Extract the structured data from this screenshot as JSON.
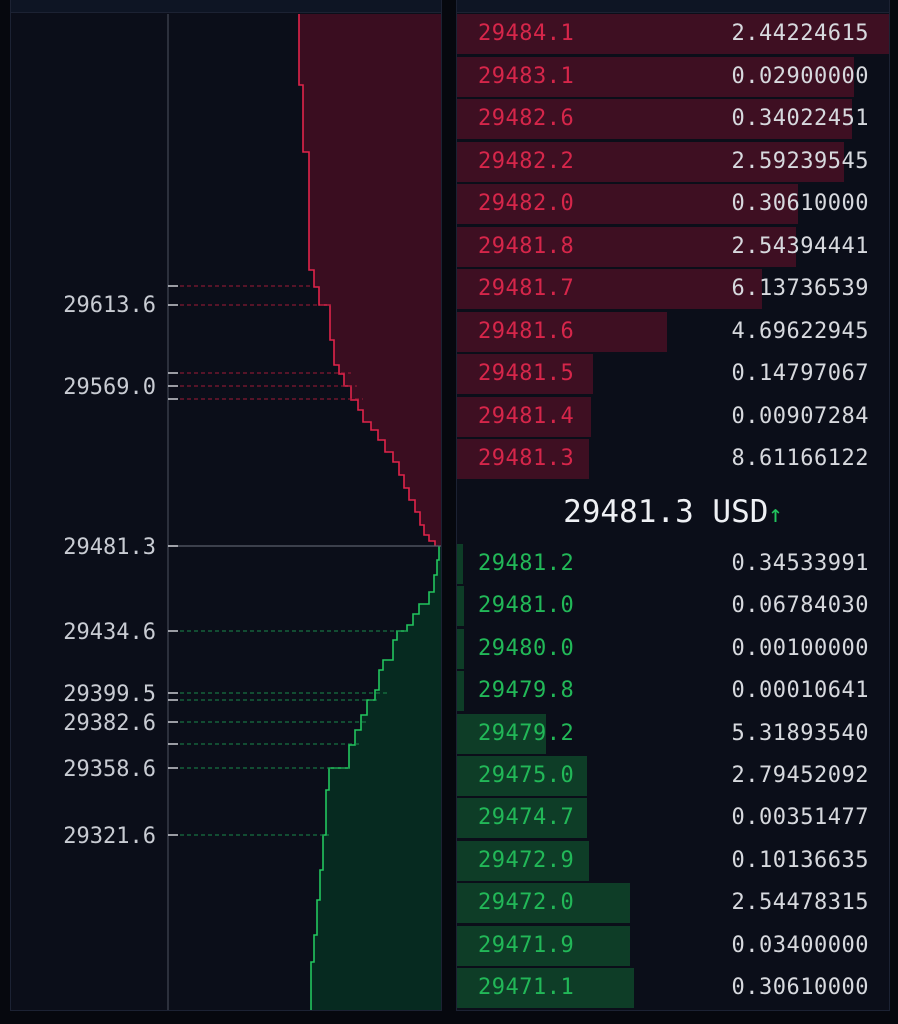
{
  "depth_chart": {
    "price_labels": [
      "29613.6",
      "29569.0",
      "29481.3",
      "29434.6",
      "29399.5",
      "29382.6",
      "29358.6",
      "29321.6"
    ],
    "colors": {
      "ask_line": "#e0244a",
      "ask_fill": "#3a0d20",
      "bid_line": "#22c55e",
      "bid_fill": "#062a20"
    }
  },
  "order_book": {
    "asks": [
      {
        "price": "29484.1",
        "qty": "2.44224615",
        "depth": 1.0
      },
      {
        "price": "29483.1",
        "qty": "0.02900000",
        "depth": 0.92
      },
      {
        "price": "29482.6",
        "qty": "0.34022451",
        "depth": 0.915
      },
      {
        "price": "29482.2",
        "qty": "2.59239545",
        "depth": 0.895
      },
      {
        "price": "29482.0",
        "qty": "0.30610000",
        "depth": 0.79
      },
      {
        "price": "29481.8",
        "qty": "2.54394441",
        "depth": 0.785
      },
      {
        "price": "29481.7",
        "qty": "6.13736539",
        "depth": 0.705
      },
      {
        "price": "29481.6",
        "qty": "4.69622945",
        "depth": 0.485
      },
      {
        "price": "29481.5",
        "qty": "0.14797067",
        "depth": 0.315
      },
      {
        "price": "29481.4",
        "qty": "0.00907284",
        "depth": 0.31
      },
      {
        "price": "29481.3",
        "qty": "8.61166122",
        "depth": 0.305
      }
    ],
    "mid_price": "29481.3 USD",
    "mid_arrow": "↑",
    "bids": [
      {
        "price": "29481.2",
        "qty": "0.34533991",
        "depth": 0.015
      },
      {
        "price": "29481.0",
        "qty": "0.06784030",
        "depth": 0.016
      },
      {
        "price": "29480.0",
        "qty": "0.00100000",
        "depth": 0.016
      },
      {
        "price": "29479.8",
        "qty": "0.00010641",
        "depth": 0.017
      },
      {
        "price": "29479.2",
        "qty": "5.31893540",
        "depth": 0.205
      },
      {
        "price": "29475.0",
        "qty": "2.79452092",
        "depth": 0.3
      },
      {
        "price": "29474.7",
        "qty": "0.00351477",
        "depth": 0.3
      },
      {
        "price": "29472.9",
        "qty": "0.10136635",
        "depth": 0.305
      },
      {
        "price": "29472.0",
        "qty": "2.54478315",
        "depth": 0.4
      },
      {
        "price": "29471.9",
        "qty": "0.03400000",
        "depth": 0.4
      },
      {
        "price": "29471.1",
        "qty": "0.30610000",
        "depth": 0.41
      }
    ]
  }
}
